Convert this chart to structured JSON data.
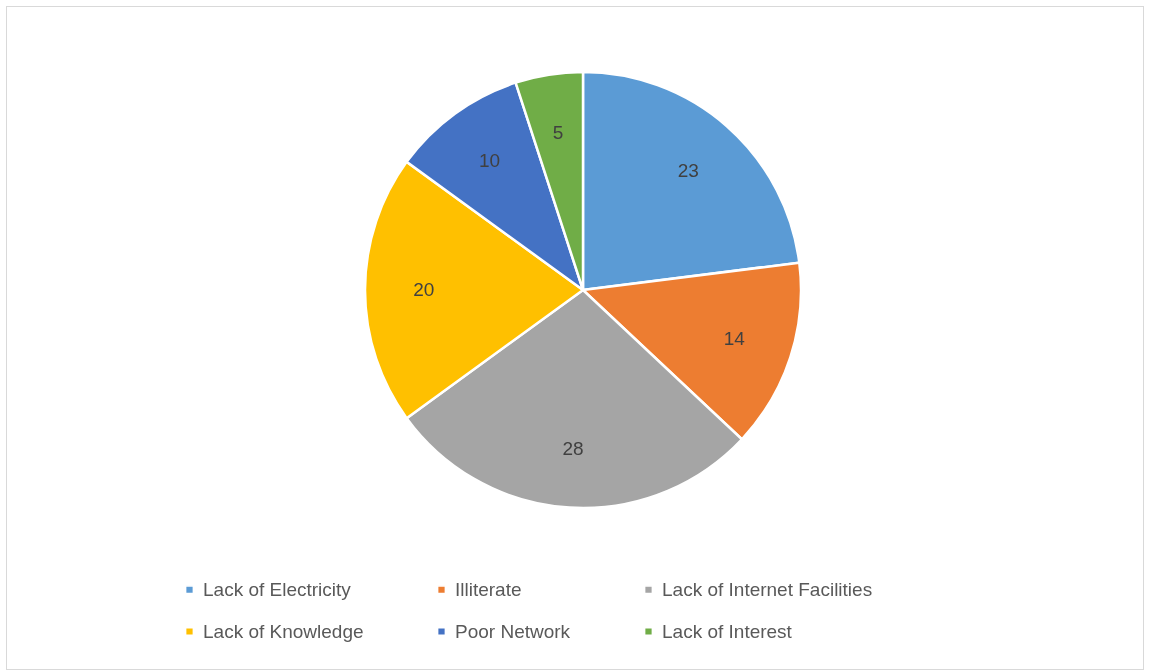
{
  "chart_data": {
    "type": "pie",
    "categories": [
      "Lack of Electricity",
      "Illiterate",
      "Lack of Internet Facilities",
      "Lack of Knowledge",
      "Poor Network",
      "Lack of Interest"
    ],
    "values": [
      23,
      14,
      28,
      20,
      10,
      5
    ],
    "colors": [
      "#5b9bd5",
      "#ed7d31",
      "#a5a5a5",
      "#ffc000",
      "#4472c4",
      "#70ad47"
    ],
    "data_labels": true,
    "legend": "bottom"
  }
}
